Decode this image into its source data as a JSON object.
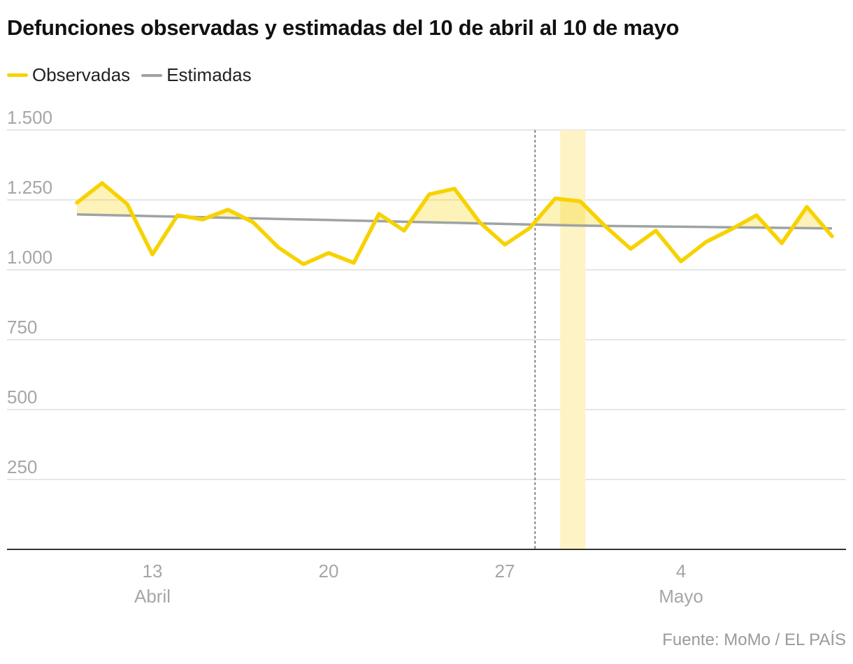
{
  "colors": {
    "observed": "#f7d200",
    "estimated": "#9ea3a3",
    "grid": "#dddddd",
    "axis_text": "#a6a6a6",
    "highlight": "#fdf3c4"
  },
  "legend": {
    "observed_label": "Observadas",
    "estimated_label": "Estimadas"
  },
  "source": "Fuente: MoMo / EL PAÍS",
  "chart_data": {
    "type": "line",
    "title": "Defunciones observadas y estimadas del 10 de abril al 10 de mayo",
    "xlabel": "",
    "ylabel": "",
    "ylim": [
      0,
      1500
    ],
    "yticks": [
      250,
      500,
      750,
      1000,
      1250,
      1500
    ],
    "ytick_labels": [
      "250",
      "500",
      "750",
      "1.000",
      "1.250",
      "1.500"
    ],
    "x_start": "2020-04-10",
    "xticks": [
      {
        "day_index": 3,
        "label": "13",
        "month": "Abril"
      },
      {
        "day_index": 10,
        "label": "20",
        "month": ""
      },
      {
        "day_index": 17,
        "label": "27",
        "month": ""
      },
      {
        "day_index": 24,
        "label": "4",
        "month": "Mayo"
      }
    ],
    "vline_day_index": 18.2,
    "highlight_range": [
      19.2,
      20.2
    ],
    "series": [
      {
        "name": "Observadas",
        "values": [
          1240,
          1310,
          1235,
          1055,
          1195,
          1180,
          1215,
          1170,
          1080,
          1020,
          1060,
          1025,
          1200,
          1140,
          1270,
          1290,
          1170,
          1090,
          1150,
          1255,
          1245,
          1155,
          1075,
          1140,
          1030,
          1100,
          1145,
          1195,
          1095,
          1225,
          1120
        ]
      },
      {
        "name": "Estimadas",
        "values": [
          1198,
          1196,
          1194,
          1192,
          1190,
          1188,
          1186,
          1184,
          1182,
          1180,
          1178,
          1176,
          1174,
          1172,
          1170,
          1168,
          1166,
          1164,
          1162,
          1160,
          1158,
          1157,
          1156,
          1155,
          1154,
          1153,
          1152,
          1151,
          1150,
          1149,
          1148
        ]
      }
    ]
  }
}
